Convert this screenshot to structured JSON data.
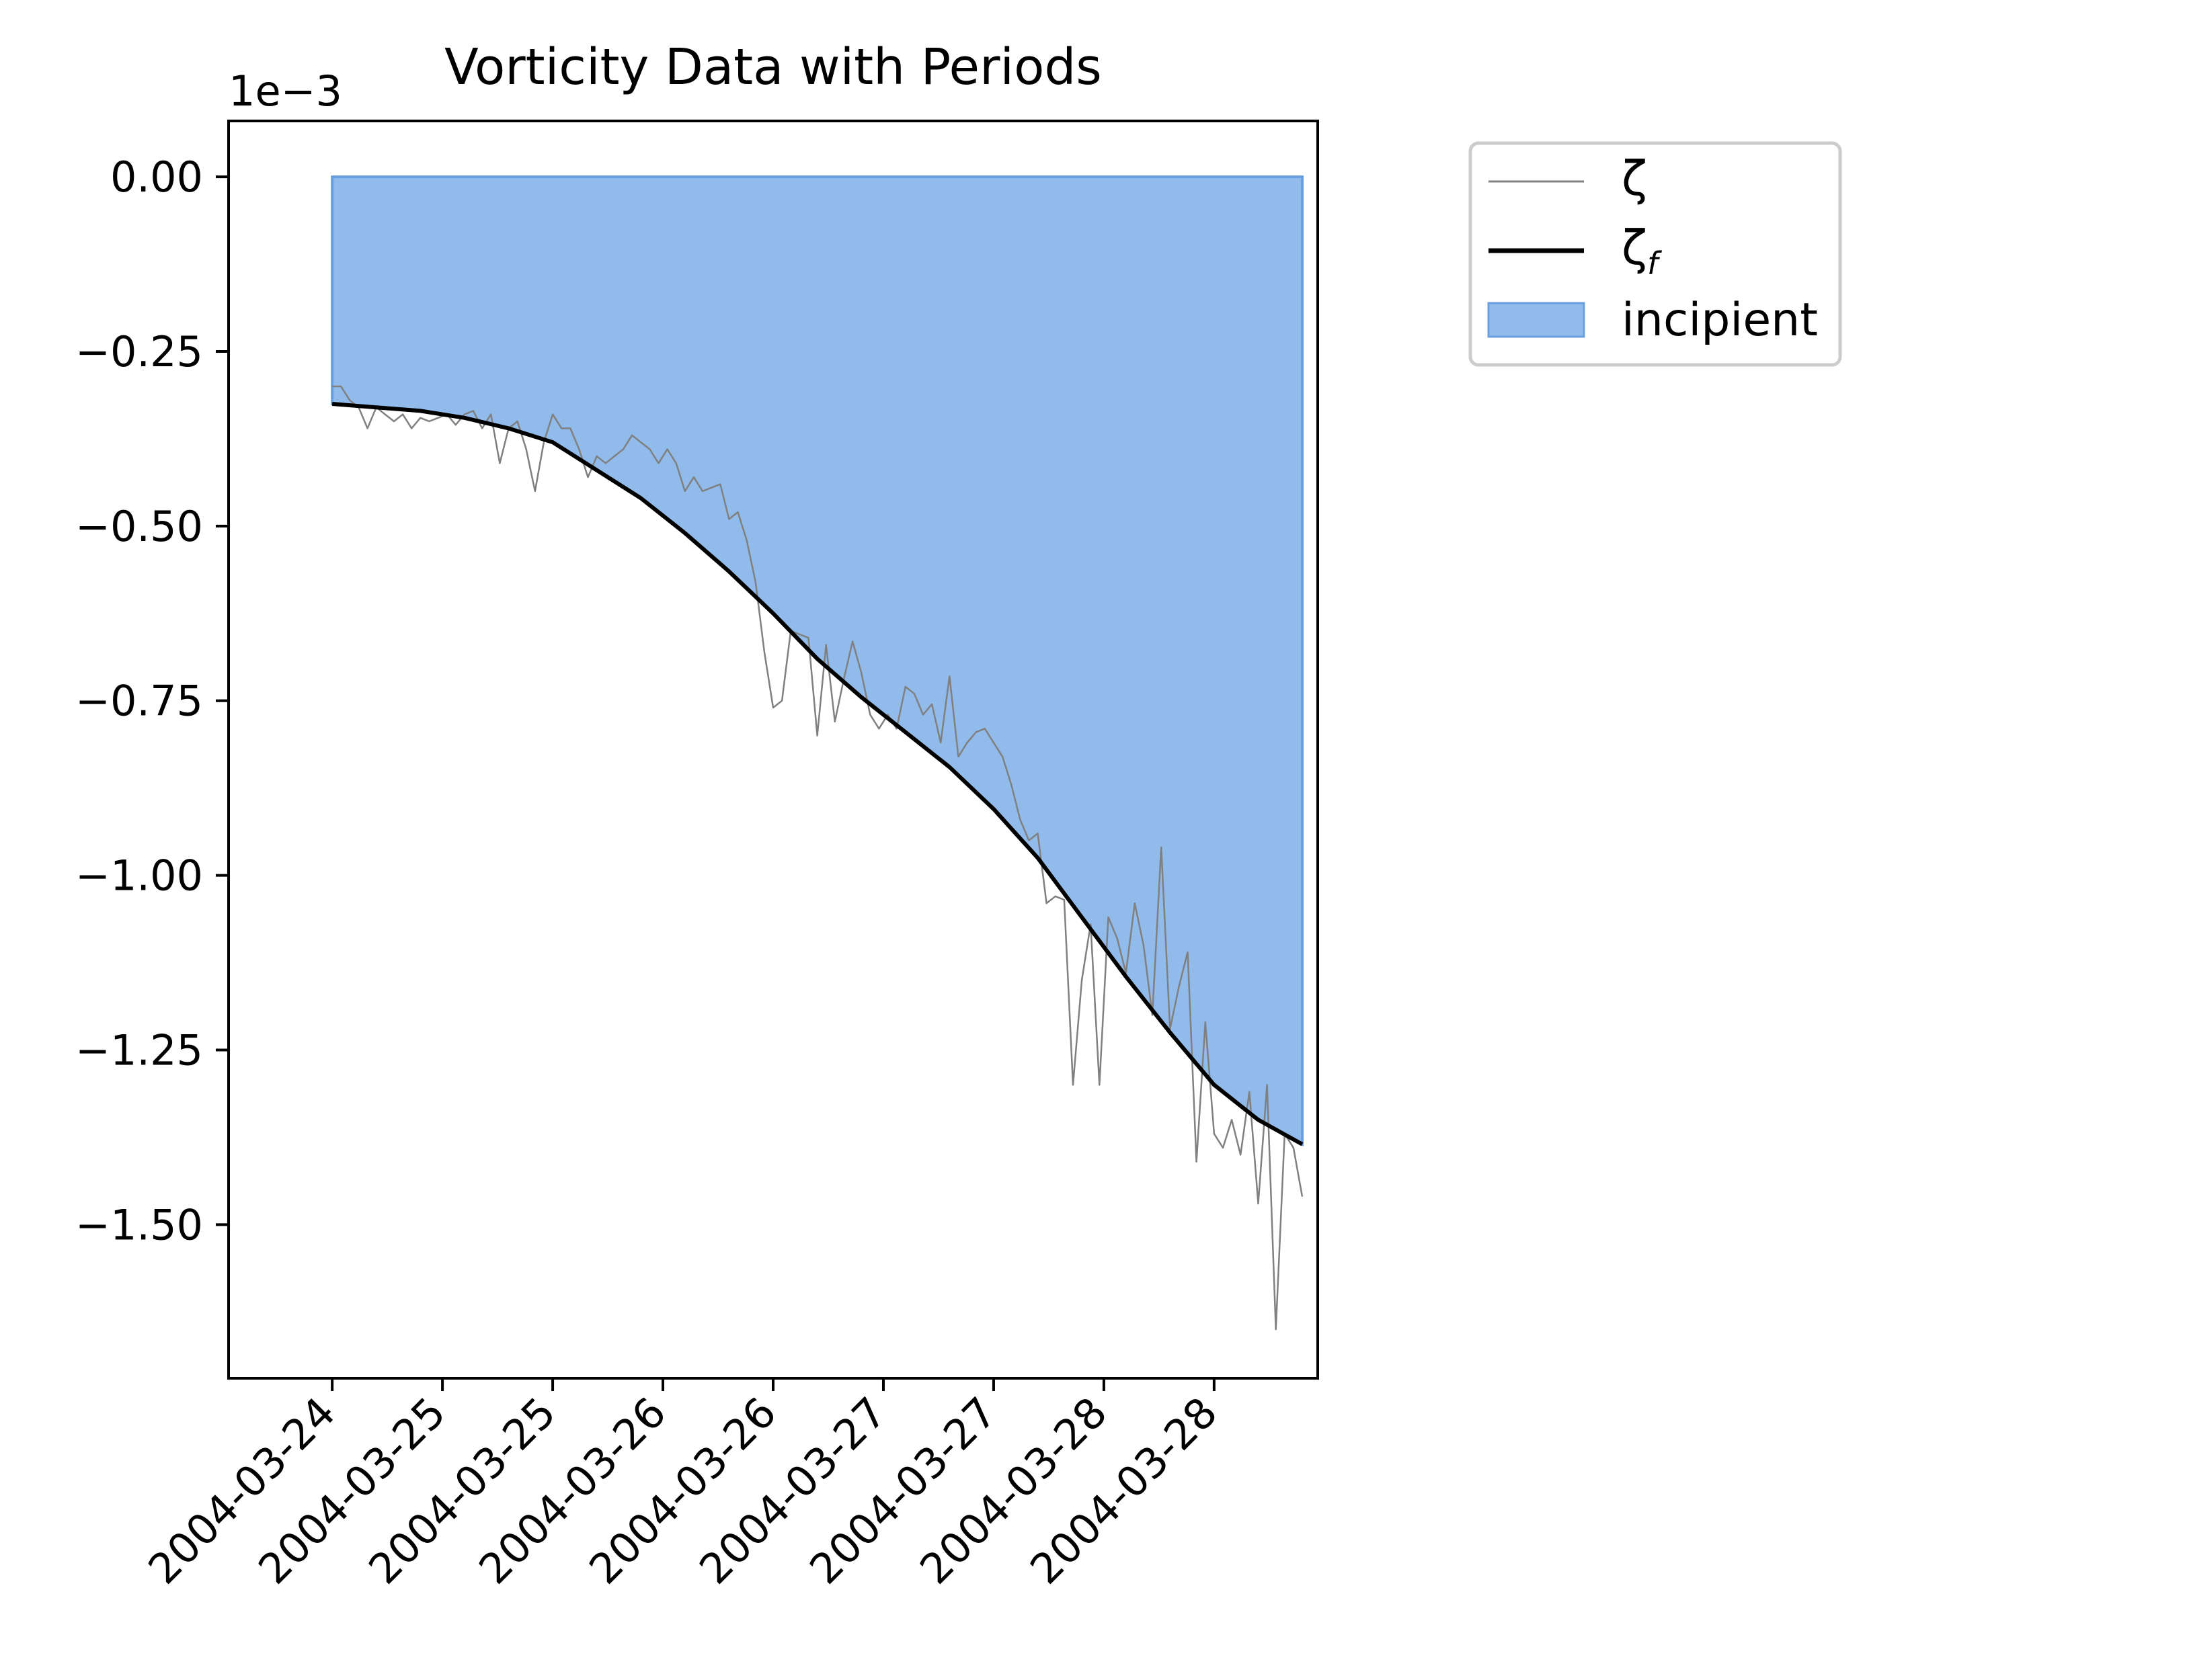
{
  "chart_data": {
    "type": "line",
    "title": "Vorticity Data with Periods",
    "xlabel": "",
    "ylabel": "",
    "y_offset_label": "1e−3",
    "ylim": [
      -1.72,
      0.08
    ],
    "y_ticks": [
      0.0,
      -0.25,
      -0.5,
      -0.75,
      -1.0,
      -1.25,
      -1.5
    ],
    "y_tick_labels": [
      "0.00",
      "−0.25",
      "−0.50",
      "−0.75",
      "−1.00",
      "−1.25",
      "−1.50"
    ],
    "x_unit": "days",
    "xlim": [
      -0.47,
      4.47
    ],
    "x_ticks": [
      0,
      0.5,
      1,
      1.5,
      2,
      2.5,
      3,
      3.5,
      4
    ],
    "x_tick_labels": [
      "2004-03-24",
      "2004-03-25",
      "2004-03-25",
      "2004-03-26",
      "2004-03-26",
      "2004-03-27",
      "2004-03-27",
      "2004-03-28",
      "2004-03-28"
    ],
    "grid": false,
    "legend_position": "outside-top-right",
    "series": [
      {
        "name": "ζ",
        "style": "thin-line",
        "color": "#808080",
        "points": [
          [
            0.0,
            -0.3
          ],
          [
            0.04,
            -0.3
          ],
          [
            0.08,
            -0.32
          ],
          [
            0.12,
            -0.33
          ],
          [
            0.16,
            -0.36
          ],
          [
            0.2,
            -0.33
          ],
          [
            0.24,
            -0.34
          ],
          [
            0.28,
            -0.35
          ],
          [
            0.32,
            -0.34
          ],
          [
            0.36,
            -0.36
          ],
          [
            0.4,
            -0.345
          ],
          [
            0.44,
            -0.35
          ],
          [
            0.48,
            -0.345
          ],
          [
            0.52,
            -0.34
          ],
          [
            0.56,
            -0.355
          ],
          [
            0.6,
            -0.34
          ],
          [
            0.64,
            -0.335
          ],
          [
            0.68,
            -0.36
          ],
          [
            0.72,
            -0.34
          ],
          [
            0.76,
            -0.41
          ],
          [
            0.8,
            -0.36
          ],
          [
            0.84,
            -0.35
          ],
          [
            0.88,
            -0.39
          ],
          [
            0.92,
            -0.45
          ],
          [
            0.96,
            -0.38
          ],
          [
            1.0,
            -0.34
          ],
          [
            1.04,
            -0.36
          ],
          [
            1.08,
            -0.36
          ],
          [
            1.12,
            -0.39
          ],
          [
            1.16,
            -0.43
          ],
          [
            1.2,
            -0.4
          ],
          [
            1.24,
            -0.41
          ],
          [
            1.28,
            -0.4
          ],
          [
            1.32,
            -0.39
          ],
          [
            1.36,
            -0.37
          ],
          [
            1.4,
            -0.38
          ],
          [
            1.44,
            -0.39
          ],
          [
            1.48,
            -0.41
          ],
          [
            1.52,
            -0.39
          ],
          [
            1.56,
            -0.41
          ],
          [
            1.6,
            -0.45
          ],
          [
            1.64,
            -0.43
          ],
          [
            1.68,
            -0.45
          ],
          [
            1.72,
            -0.445
          ],
          [
            1.76,
            -0.44
          ],
          [
            1.8,
            -0.49
          ],
          [
            1.84,
            -0.48
          ],
          [
            1.88,
            -0.52
          ],
          [
            1.92,
            -0.58
          ],
          [
            1.96,
            -0.68
          ],
          [
            2.0,
            -0.76
          ],
          [
            2.04,
            -0.75
          ],
          [
            2.08,
            -0.65
          ],
          [
            2.12,
            -0.655
          ],
          [
            2.16,
            -0.66
          ],
          [
            2.2,
            -0.8
          ],
          [
            2.24,
            -0.67
          ],
          [
            2.28,
            -0.78
          ],
          [
            2.32,
            -0.72
          ],
          [
            2.36,
            -0.665
          ],
          [
            2.4,
            -0.71
          ],
          [
            2.44,
            -0.77
          ],
          [
            2.48,
            -0.79
          ],
          [
            2.52,
            -0.77
          ],
          [
            2.56,
            -0.79
          ],
          [
            2.6,
            -0.73
          ],
          [
            2.64,
            -0.74
          ],
          [
            2.68,
            -0.77
          ],
          [
            2.72,
            -0.755
          ],
          [
            2.76,
            -0.81
          ],
          [
            2.8,
            -0.715
          ],
          [
            2.84,
            -0.83
          ],
          [
            2.88,
            -0.81
          ],
          [
            2.92,
            -0.795
          ],
          [
            2.96,
            -0.79
          ],
          [
            3.0,
            -0.81
          ],
          [
            3.04,
            -0.83
          ],
          [
            3.08,
            -0.87
          ],
          [
            3.12,
            -0.92
          ],
          [
            3.16,
            -0.95
          ],
          [
            3.2,
            -0.94
          ],
          [
            3.24,
            -1.04
          ],
          [
            3.28,
            -1.03
          ],
          [
            3.32,
            -1.035
          ],
          [
            3.36,
            -1.3
          ],
          [
            3.4,
            -1.15
          ],
          [
            3.44,
            -1.07
          ],
          [
            3.48,
            -1.3
          ],
          [
            3.52,
            -1.06
          ],
          [
            3.56,
            -1.09
          ],
          [
            3.6,
            -1.14
          ],
          [
            3.64,
            -1.04
          ],
          [
            3.68,
            -1.1
          ],
          [
            3.72,
            -1.2
          ],
          [
            3.76,
            -0.96
          ],
          [
            3.8,
            -1.22
          ],
          [
            3.84,
            -1.16
          ],
          [
            3.88,
            -1.11
          ],
          [
            3.92,
            -1.41
          ],
          [
            3.96,
            -1.21
          ],
          [
            4.0,
            -1.37
          ],
          [
            4.04,
            -1.39
          ],
          [
            4.08,
            -1.35
          ],
          [
            4.12,
            -1.4
          ],
          [
            4.16,
            -1.31
          ],
          [
            4.2,
            -1.47
          ],
          [
            4.24,
            -1.3
          ],
          [
            4.28,
            -1.65
          ],
          [
            4.32,
            -1.37
          ],
          [
            4.36,
            -1.39
          ],
          [
            4.4,
            -1.46
          ]
        ]
      },
      {
        "name": "ζ_f",
        "style": "thick-line",
        "color": "#000000",
        "points": [
          [
            0.0,
            -0.325
          ],
          [
            0.2,
            -0.33
          ],
          [
            0.4,
            -0.335
          ],
          [
            0.6,
            -0.345
          ],
          [
            0.8,
            -0.36
          ],
          [
            1.0,
            -0.38
          ],
          [
            1.2,
            -0.42
          ],
          [
            1.4,
            -0.46
          ],
          [
            1.6,
            -0.51
          ],
          [
            1.8,
            -0.565
          ],
          [
            2.0,
            -0.625
          ],
          [
            2.2,
            -0.69
          ],
          [
            2.4,
            -0.745
          ],
          [
            2.6,
            -0.795
          ],
          [
            2.8,
            -0.845
          ],
          [
            3.0,
            -0.905
          ],
          [
            3.2,
            -0.975
          ],
          [
            3.4,
            -1.06
          ],
          [
            3.6,
            -1.145
          ],
          [
            3.8,
            -1.225
          ],
          [
            4.0,
            -1.3
          ],
          [
            4.2,
            -1.35
          ],
          [
            4.4,
            -1.385
          ]
        ]
      }
    ],
    "shaded_periods": [
      {
        "name": "incipient",
        "x_start": 0.0,
        "x_end": 4.4,
        "from_y": 0.0,
        "to_series": "ζ_f",
        "color": "#91bbeb",
        "edge_color": "#6aa0e0"
      }
    ]
  }
}
